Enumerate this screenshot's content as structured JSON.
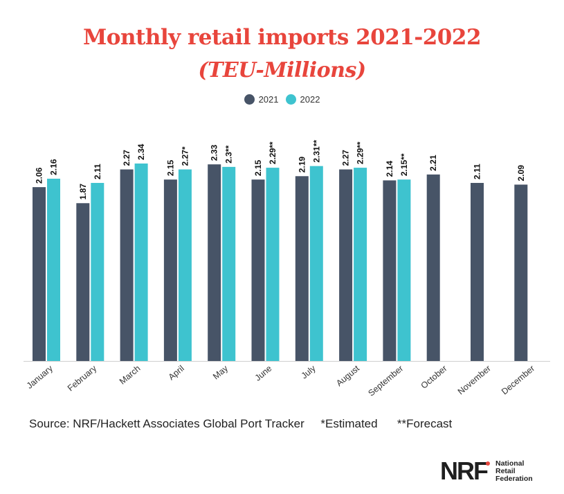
{
  "chart_data": {
    "type": "bar",
    "title": "Monthly retail imports 2021-2022",
    "subtitle": "(TEU-Millions)",
    "categories": [
      "January",
      "February",
      "March",
      "April",
      "May",
      "June",
      "July",
      "August",
      "September",
      "October",
      "November",
      "December"
    ],
    "series": [
      {
        "name": "2021",
        "color": "#475467",
        "values": [
          2.06,
          1.87,
          2.27,
          2.15,
          2.33,
          2.15,
          2.19,
          2.27,
          2.14,
          2.21,
          2.11,
          2.09
        ],
        "labels": [
          "2.06",
          "1.87",
          "2.27",
          "2.15",
          "2.33",
          "2.15",
          "2.19",
          "2.27",
          "2.14",
          "2.21",
          "2.11",
          "2.09"
        ]
      },
      {
        "name": "2022",
        "color": "#3ec3cf",
        "values": [
          2.16,
          2.11,
          2.34,
          2.27,
          2.3,
          2.29,
          2.31,
          2.29,
          2.15,
          null,
          null,
          null
        ],
        "labels": [
          "2.16",
          "2.11",
          "2.34",
          "2.27*",
          "2.3**",
          "2.29**",
          "2.31**",
          "2.29**",
          "2.15**",
          "",
          "",
          ""
        ]
      }
    ],
    "ylim": [
      0,
      2.45
    ],
    "grid": false,
    "legend_position": "top-center",
    "xlabel": "",
    "ylabel": ""
  },
  "legend": {
    "item1": "2021",
    "item2": "2022"
  },
  "source_note": "Source: NRF/Hackett Associates Global Port Tracker     *Estimated      **Forecast",
  "logo": {
    "mark": "NRF",
    "line1": "National",
    "line2": "Retail",
    "line3": "Federation"
  }
}
